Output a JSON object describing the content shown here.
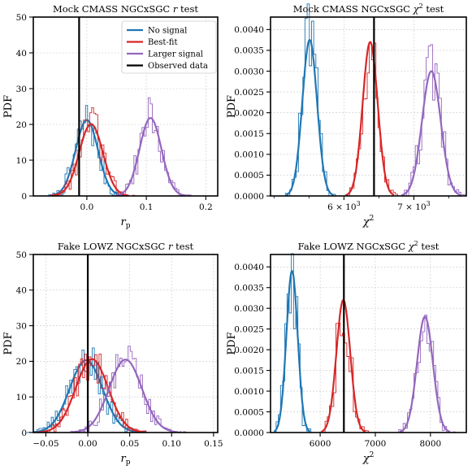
{
  "chart_data": [
    {
      "type": "line",
      "title": "Mock CMASS NGCxSGC r test",
      "title_parts": {
        "pre": "Mock CMASS NGCxSGC ",
        "var": "r",
        "post": " test"
      },
      "xlabel": {
        "main": "r",
        "sub": "p"
      },
      "ylabel": "PDF",
      "xlim": [
        -0.09,
        0.22
      ],
      "ylim": [
        0,
        50
      ],
      "xticks": [
        0.0,
        0.1,
        0.2
      ],
      "xtick_labels": [
        "0.0",
        "0.1",
        "0.2"
      ],
      "yticks": [
        0,
        10,
        20,
        30,
        40,
        50
      ],
      "ytick_labels": [
        "0",
        "10",
        "20",
        "30",
        "40",
        "50"
      ],
      "grid": true,
      "legend": {
        "placement": "top-right",
        "entries": [
          {
            "label": "No signal",
            "color": "#1f77b4"
          },
          {
            "label": "Best-fit",
            "color": "#d62728"
          },
          {
            "label": "Larger signal",
            "color": "#9467bd"
          },
          {
            "label": "Observed data",
            "color": "#000000"
          }
        ]
      },
      "series": [
        {
          "name": "No signal",
          "color": "#1f77b4",
          "mean": 0.0,
          "peak": 21.2,
          "sigma": 0.0188
        },
        {
          "name": "Best-fit",
          "color": "#d62728",
          "mean": 0.007,
          "peak": 20.1,
          "sigma": 0.0198
        },
        {
          "name": "Larger signal",
          "color": "#9467bd",
          "mean": 0.107,
          "peak": 21.8,
          "sigma": 0.0183
        }
      ],
      "observed": -0.013
    },
    {
      "type": "line",
      "title": "Mock CMASS NGCxSGC χ² test",
      "title_parts": {
        "pre": "Mock CMASS NGCxSGC ",
        "var": "χ",
        "sup": "2",
        "post": " test"
      },
      "xlabel": {
        "main": "χ",
        "sup": "2"
      },
      "ylabel": "PDF",
      "xlim": [
        4950,
        7750
      ],
      "ylim": [
        0,
        0.0043
      ],
      "xticks": [
        6000,
        7000
      ],
      "xtick_labels": [
        {
          "base": "6 × 10",
          "exp": "3"
        },
        {
          "base": "7 × 10",
          "exp": "3"
        }
      ],
      "yticks": [
        0,
        0.0005,
        0.001,
        0.0015,
        0.002,
        0.0025,
        0.003,
        0.0035,
        0.004
      ],
      "ytick_labels": [
        "0.0000",
        "0.0005",
        "0.0010",
        "0.0015",
        "0.0020",
        "0.0025",
        "0.0030",
        "0.0035",
        "0.0040"
      ],
      "grid": true,
      "series": [
        {
          "name": "No signal",
          "color": "#1f77b4",
          "mean": 5510,
          "peak": 0.00375,
          "sigma": 105
        },
        {
          "name": "Best-fit",
          "color": "#d62728",
          "mean": 6375,
          "peak": 0.0037,
          "sigma": 107
        },
        {
          "name": "Larger signal",
          "color": "#9467bd",
          "mean": 7250,
          "peak": 0.003,
          "sigma": 133
        }
      ],
      "observed": 6430
    },
    {
      "type": "line",
      "title": "Fake LOWZ NGCxSGC r test",
      "title_parts": {
        "pre": "Fake LOWZ NGCxSGC ",
        "var": "r",
        "post": " test"
      },
      "xlabel": {
        "main": "r",
        "sub": "p"
      },
      "ylabel": "PDF",
      "xlim": [
        -0.065,
        0.155
      ],
      "ylim": [
        0,
        50
      ],
      "xticks": [
        -0.05,
        0.0,
        0.05,
        0.1,
        0.15
      ],
      "xtick_labels": [
        "−0.05",
        "0.00",
        "0.05",
        "0.10",
        "0.15"
      ],
      "yticks": [
        0,
        10,
        20,
        30,
        40,
        50
      ],
      "ytick_labels": [
        "0",
        "10",
        "20",
        "30",
        "40",
        "50"
      ],
      "grid": true,
      "series": [
        {
          "name": "No signal",
          "color": "#1f77b4",
          "mean": -0.002,
          "peak": 20.3,
          "sigma": 0.0197
        },
        {
          "name": "Best-fit",
          "color": "#d62728",
          "mean": 0.005,
          "peak": 20.6,
          "sigma": 0.0194
        },
        {
          "name": "Larger signal",
          "color": "#9467bd",
          "mean": 0.045,
          "peak": 20.5,
          "sigma": 0.0195
        }
      ],
      "observed": 0.0
    },
    {
      "type": "line",
      "title": "Fake LOWZ NGCxSGC χ² test",
      "title_parts": {
        "pre": "Fake LOWZ NGCxSGC ",
        "var": "χ",
        "sup": "2",
        "post": " test"
      },
      "xlabel": {
        "main": "χ",
        "sup": "2"
      },
      "ylabel": "PDF",
      "xlim": [
        5100,
        8650
      ],
      "ylim": [
        0,
        0.0043
      ],
      "xticks": [
        6000,
        7000,
        8000
      ],
      "xtick_labels": [
        "6000",
        "7000",
        "8000"
      ],
      "yticks": [
        0,
        0.0005,
        0.001,
        0.0015,
        0.002,
        0.0025,
        0.003,
        0.0035,
        0.004
      ],
      "ytick_labels": [
        "0.0000",
        "0.0005",
        "0.0010",
        "0.0015",
        "0.0020",
        "0.0025",
        "0.0030",
        "0.0035",
        "0.0040"
      ],
      "grid": true,
      "series": [
        {
          "name": "No signal",
          "color": "#1f77b4",
          "mean": 5490,
          "peak": 0.0039,
          "sigma": 102
        },
        {
          "name": "Best-fit",
          "color": "#d62728",
          "mean": 6420,
          "peak": 0.0032,
          "sigma": 125
        },
        {
          "name": "Larger signal",
          "color": "#9467bd",
          "mean": 7900,
          "peak": 0.0028,
          "sigma": 143
        }
      ],
      "observed": 6430
    }
  ]
}
